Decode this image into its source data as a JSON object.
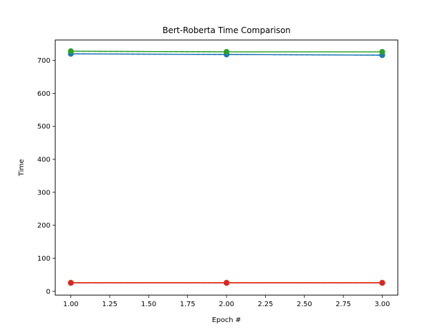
{
  "chart_data": {
    "type": "line",
    "title": "Bert-Roberta Time Comparison",
    "xlabel": "Epoch #",
    "ylabel": "Time",
    "xlim": [
      0.9,
      3.1
    ],
    "ylim": [
      -12,
      762
    ],
    "xticks": [
      1.0,
      1.25,
      1.5,
      1.75,
      2.0,
      2.25,
      2.5,
      2.75,
      3.0
    ],
    "xtick_labels": [
      "1.00",
      "1.25",
      "1.50",
      "1.75",
      "2.00",
      "2.25",
      "2.50",
      "2.75",
      "3.00"
    ],
    "yticks": [
      0,
      100,
      200,
      300,
      400,
      500,
      600,
      700
    ],
    "ytick_labels": [
      "0",
      "100",
      "200",
      "300",
      "400",
      "500",
      "600",
      "700"
    ],
    "grid": false,
    "legend": false,
    "x": [
      1,
      2,
      3
    ],
    "series": [
      {
        "color": "#1f77b4",
        "linestyle": "solid",
        "marker": true,
        "values": [
          720,
          718,
          716
        ]
      },
      {
        "color": "#1f77b4",
        "linestyle": "dashed",
        "marker": false,
        "values": [
          720,
          718,
          716
        ]
      },
      {
        "color": "#ff7f0e",
        "linestyle": "solid",
        "marker": true,
        "values": [
          26,
          26,
          26
        ]
      },
      {
        "color": "#ff7f0e",
        "linestyle": "dashed",
        "marker": false,
        "values": [
          26,
          26,
          26
        ]
      },
      {
        "color": "#2ca02c",
        "linestyle": "solid",
        "marker": true,
        "values": [
          728,
          726,
          726
        ]
      },
      {
        "color": "#2ca02c",
        "linestyle": "dashed",
        "marker": false,
        "values": [
          728,
          726,
          726
        ]
      },
      {
        "color": "#d62728",
        "linestyle": "solid",
        "marker": true,
        "values": [
          25,
          25,
          25
        ]
      },
      {
        "color": "#d62728",
        "linestyle": "dashed",
        "marker": false,
        "values": [
          25,
          25,
          25
        ]
      }
    ]
  }
}
